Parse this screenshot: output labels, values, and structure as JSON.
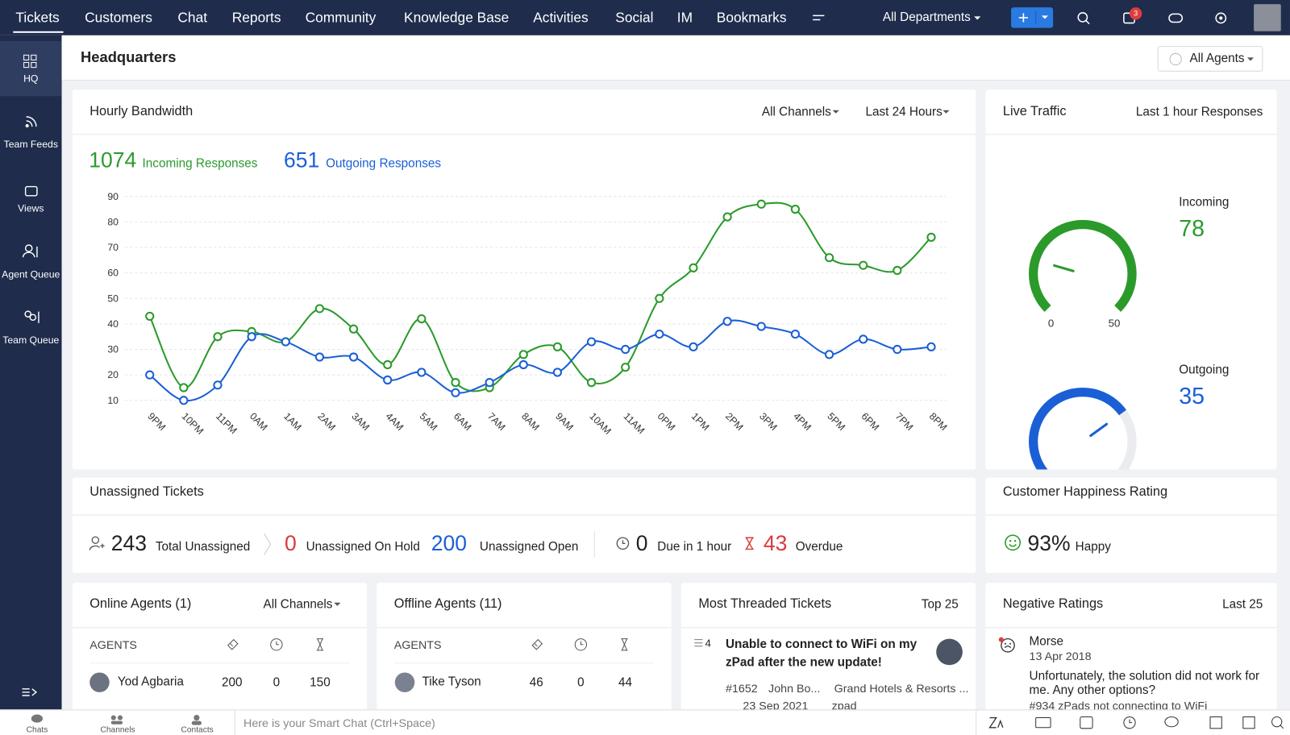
{
  "nav": {
    "tabs": [
      "Tickets",
      "Customers",
      "Chat",
      "Reports",
      "Community",
      "Knowledge Base",
      "Activities",
      "Social",
      "IM",
      "Bookmarks"
    ],
    "department": "All Departments",
    "notifications": 3
  },
  "sidebar": [
    "HQ",
    "Team Feeds",
    "Views",
    "Agent Queue",
    "Team Queue"
  ],
  "header": {
    "title": "Headquarters",
    "agents_filter": "All Agents"
  },
  "bandwidth": {
    "title": "Hourly Bandwidth",
    "filters": [
      "All Channels",
      "Last 24 Hours"
    ]
  },
  "live_traffic": {
    "title": "Live Traffic",
    "subtitle": "Last 1 hour Responses"
  },
  "chart_data": [
    {
      "type": "line",
      "categories": [
        "9PM",
        "10PM",
        "11PM",
        "0AM",
        "1AM",
        "2AM",
        "3AM",
        "4AM",
        "5AM",
        "6AM",
        "7AM",
        "8AM",
        "9AM",
        "10AM",
        "11AM",
        "0PM",
        "1PM",
        "2PM",
        "3PM",
        "4PM",
        "5PM",
        "6PM",
        "7PM",
        "8PM"
      ],
      "series": [
        {
          "name": "Incoming Responses",
          "total": 1074,
          "color": "#2b9a2b",
          "values": [
            43,
            15,
            35,
            37,
            33,
            46,
            38,
            24,
            42,
            17,
            15,
            28,
            31,
            17,
            23,
            50,
            62,
            82,
            87,
            85,
            66,
            63,
            61,
            74
          ]
        },
        {
          "name": "Outgoing Responses",
          "total": 651,
          "color": "#1a5fd6",
          "values": [
            20,
            10,
            16,
            35,
            33,
            27,
            27,
            18,
            21,
            13,
            17,
            24,
            21,
            33,
            30,
            36,
            31,
            41,
            39,
            36,
            28,
            34,
            30,
            31
          ]
        }
      ],
      "ylim": [
        5,
        95
      ],
      "yticks": [
        10,
        20,
        30,
        40,
        50,
        60,
        70,
        80,
        90
      ],
      "grid": true
    },
    {
      "type": "gauge",
      "title": "Incoming",
      "value": 78,
      "color": "#2b9a2b",
      "ylim": [
        0,
        50
      ],
      "yticks": [
        0,
        50
      ]
    },
    {
      "type": "gauge",
      "title": "Outgoing",
      "value": 35,
      "color": "#1a5fd6",
      "ylim": [
        0,
        50
      ],
      "yticks": [
        0,
        50
      ]
    }
  ],
  "unassigned": {
    "title": "Unassigned Tickets",
    "stats": [
      {
        "value": 243,
        "label": "Total Unassigned"
      },
      {
        "value": 0,
        "label": "Unassigned On Hold"
      },
      {
        "value": 200,
        "label": "Unassigned Open"
      },
      {
        "value": 0,
        "label": "Due in 1 hour"
      },
      {
        "value": 43,
        "label": "Overdue"
      }
    ]
  },
  "happiness": {
    "title": "Customer Happiness Rating",
    "value": "93%",
    "label": "Happy"
  },
  "online_agents": {
    "title": "Online Agents (1)",
    "filter": "All Channels",
    "column": "AGENTS",
    "rows": [
      {
        "name": "Yod Agbaria",
        "values": [
          200,
          0,
          150
        ]
      }
    ]
  },
  "offline_agents": {
    "title": "Offline Agents (11)",
    "column": "AGENTS",
    "rows": [
      {
        "name": "Tike Tyson",
        "values": [
          46,
          0,
          44
        ]
      }
    ]
  },
  "threaded": {
    "title": "Most Threaded Tickets",
    "filter": "Top 25",
    "item": {
      "count": 4,
      "subject": "Unable to connect to WiFi on my zPad after the new update!",
      "id": "#1652",
      "contact": "John Bo...",
      "account": "Grand Hotels & Resorts ...",
      "date": "23 Sep 2021",
      "product": "zpad"
    }
  },
  "negative": {
    "title": "Negative Ratings",
    "filter": "Last 25",
    "item": {
      "name": "Morse",
      "date": "13 Apr 2018",
      "comment": "Unfortunately, the solution did not work for me. Any other options?",
      "ticket": "#934 zPads not connecting to WiFi"
    }
  },
  "bottom_bar": {
    "items": [
      "Chats",
      "Channels",
      "Contacts"
    ],
    "placeholder": "Here is your Smart Chat (Ctrl+Space)"
  }
}
